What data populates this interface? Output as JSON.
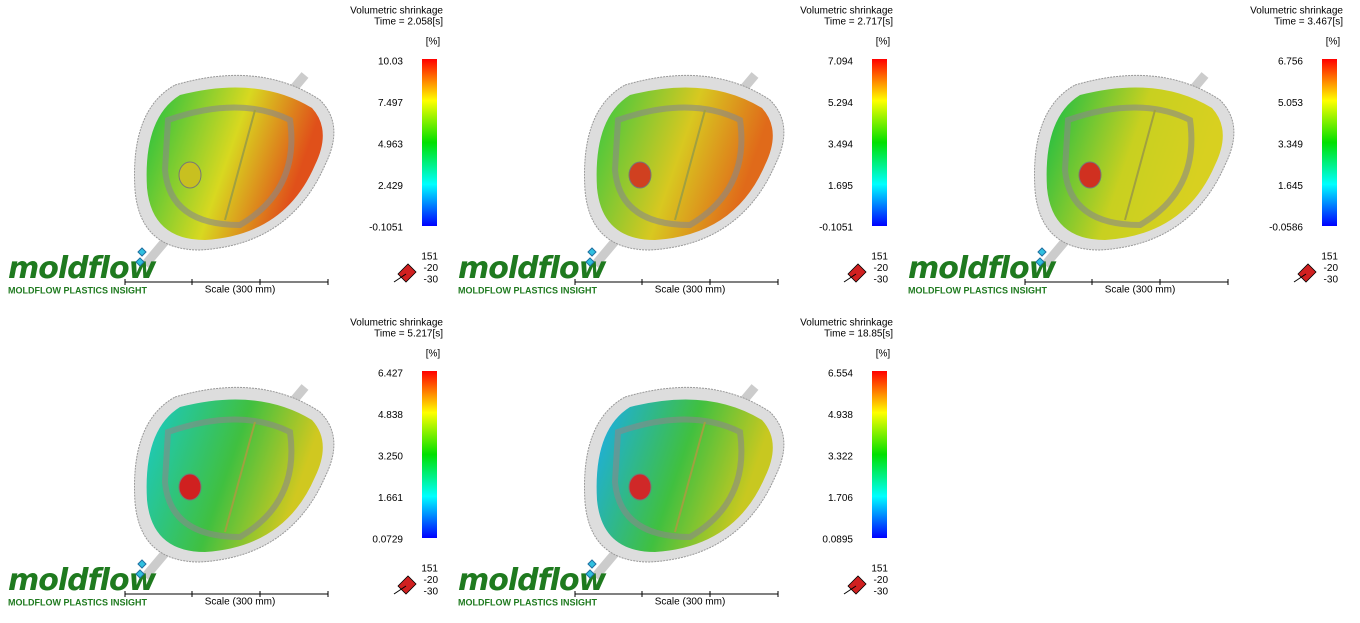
{
  "panels": [
    {
      "result": "Volumetric shrinkage",
      "time": "Time = 2.058[s]",
      "unit": "[%]",
      "scale_labels": [
        "10.03",
        "7.497",
        "4.963",
        "2.429",
        "-0.1051"
      ],
      "orientation": [
        "151",
        "-20",
        "-30"
      ],
      "scale": "Scale (300 mm)",
      "logo": "moldflow",
      "logo_subtitle": "Moldflow Plastics Insight"
    },
    {
      "result": "Volumetric shrinkage",
      "time": "Time = 2.717[s]",
      "unit": "[%]",
      "scale_labels": [
        "7.094",
        "5.294",
        "3.494",
        "1.695",
        "-0.1051"
      ],
      "orientation": [
        "151",
        "-20",
        "-30"
      ],
      "scale": "Scale (300 mm)",
      "logo": "moldflow",
      "logo_subtitle": "Moldflow Plastics Insight"
    },
    {
      "result": "Volumetric shrinkage",
      "time": "Time = 3.467[s]",
      "unit": "[%]",
      "scale_labels": [
        "6.756",
        "5.053",
        "3.349",
        "1.645",
        "-0.0586"
      ],
      "orientation": [
        "151",
        "-20",
        "-30"
      ],
      "scale": "Scale (300 mm)",
      "logo": "moldflow",
      "logo_subtitle": "Moldflow Plastics Insight"
    },
    {
      "result": "Volumetric shrinkage",
      "time": "Time = 5.217[s]",
      "unit": "[%]",
      "scale_labels": [
        "6.427",
        "4.838",
        "3.250",
        "1.661",
        "0.0729"
      ],
      "orientation": [
        "151",
        "-20",
        "-30"
      ],
      "scale": "Scale (300 mm)",
      "logo": "moldflow",
      "logo_subtitle": "Moldflow Plastics Insight"
    },
    {
      "result": "Volumetric shrinkage",
      "time": "Time = 18.85[s]",
      "unit": "[%]",
      "scale_labels": [
        "6.554",
        "4.938",
        "3.322",
        "1.706",
        "0.0895"
      ],
      "orientation": [
        "151",
        "-20",
        "-30"
      ],
      "scale": "Scale (300 mm)",
      "logo": "moldflow",
      "logo_subtitle": "Moldflow Plastics Insight"
    }
  ]
}
